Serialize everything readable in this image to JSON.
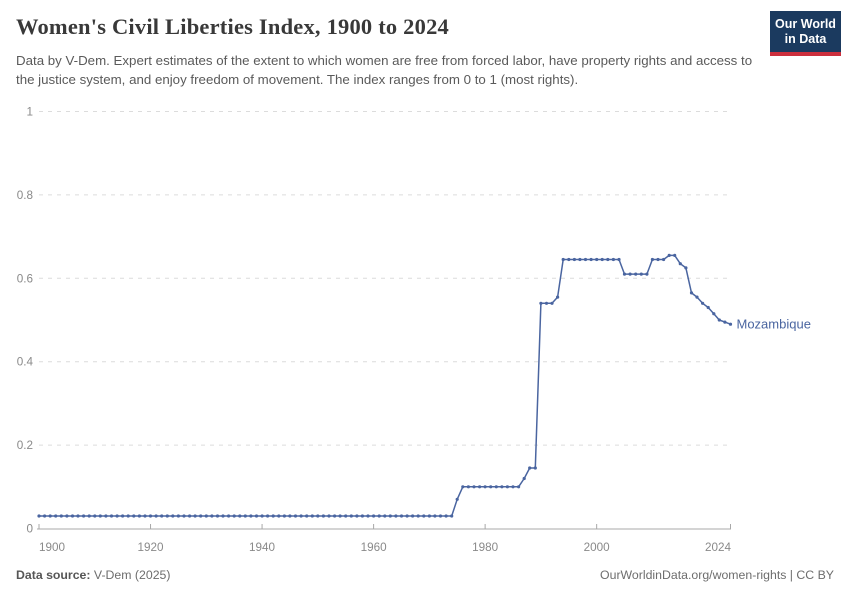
{
  "page": {
    "title": "Women's Civil Liberties Index, 1900 to 2024",
    "subtitle": "Data by V-Dem. Expert estimates of the extent to which women are free from forced labor, have property rights and access to the justice system, and enjoy freedom of movement. The index ranges from 0 to 1 (most rights).",
    "logo": {
      "line1": "Our World",
      "line2": "in Data"
    }
  },
  "footer": {
    "source_label": "Data source:",
    "source_value": "V-Dem (2025)",
    "rights": "OurWorldinData.org/women-rights | CC BY"
  },
  "colors": {
    "series": "#4a65a0",
    "grid": "#dcdcdc",
    "axis": "#a8a8a8",
    "tick_text": "#8a8a8a",
    "logo_navy": "#1b3a5f",
    "logo_red": "#cc2f3d"
  },
  "chart_data": {
    "type": "line",
    "title": "Women's Civil Liberties Index, 1900 to 2024",
    "entity": "Mozambique",
    "xlabel": "",
    "ylabel": "",
    "x_range": [
      1900,
      2024
    ],
    "y_range": [
      0,
      1
    ],
    "x_ticks": [
      1900,
      1920,
      1940,
      1960,
      1980,
      2000,
      2024
    ],
    "y_ticks": [
      0,
      0.2,
      0.4,
      0.6,
      0.8,
      1
    ],
    "grid": true,
    "legend_position": "end-of-line",
    "markers": true,
    "series": [
      {
        "name": "Mozambique",
        "color": "#4a65a0",
        "segments_year_from_to_value": [
          [
            1900,
            1974,
            0.03
          ],
          [
            1975,
            1975,
            0.07
          ],
          [
            1976,
            1986,
            0.1
          ],
          [
            1987,
            1987,
            0.12
          ],
          [
            1988,
            1989,
            0.145
          ],
          [
            1990,
            1992,
            0.54
          ],
          [
            1993,
            1993,
            0.555
          ],
          [
            1994,
            2004,
            0.645
          ],
          [
            2005,
            2009,
            0.61
          ],
          [
            2010,
            2012,
            0.645
          ],
          [
            2013,
            2014,
            0.655
          ],
          [
            2015,
            2015,
            0.635
          ],
          [
            2016,
            2016,
            0.625
          ],
          [
            2017,
            2017,
            0.565
          ],
          [
            2018,
            2018,
            0.555
          ],
          [
            2019,
            2019,
            0.54
          ],
          [
            2020,
            2020,
            0.53
          ],
          [
            2021,
            2021,
            0.515
          ],
          [
            2022,
            2022,
            0.5
          ],
          [
            2023,
            2023,
            0.495
          ],
          [
            2024,
            2024,
            0.49
          ]
        ]
      }
    ]
  }
}
